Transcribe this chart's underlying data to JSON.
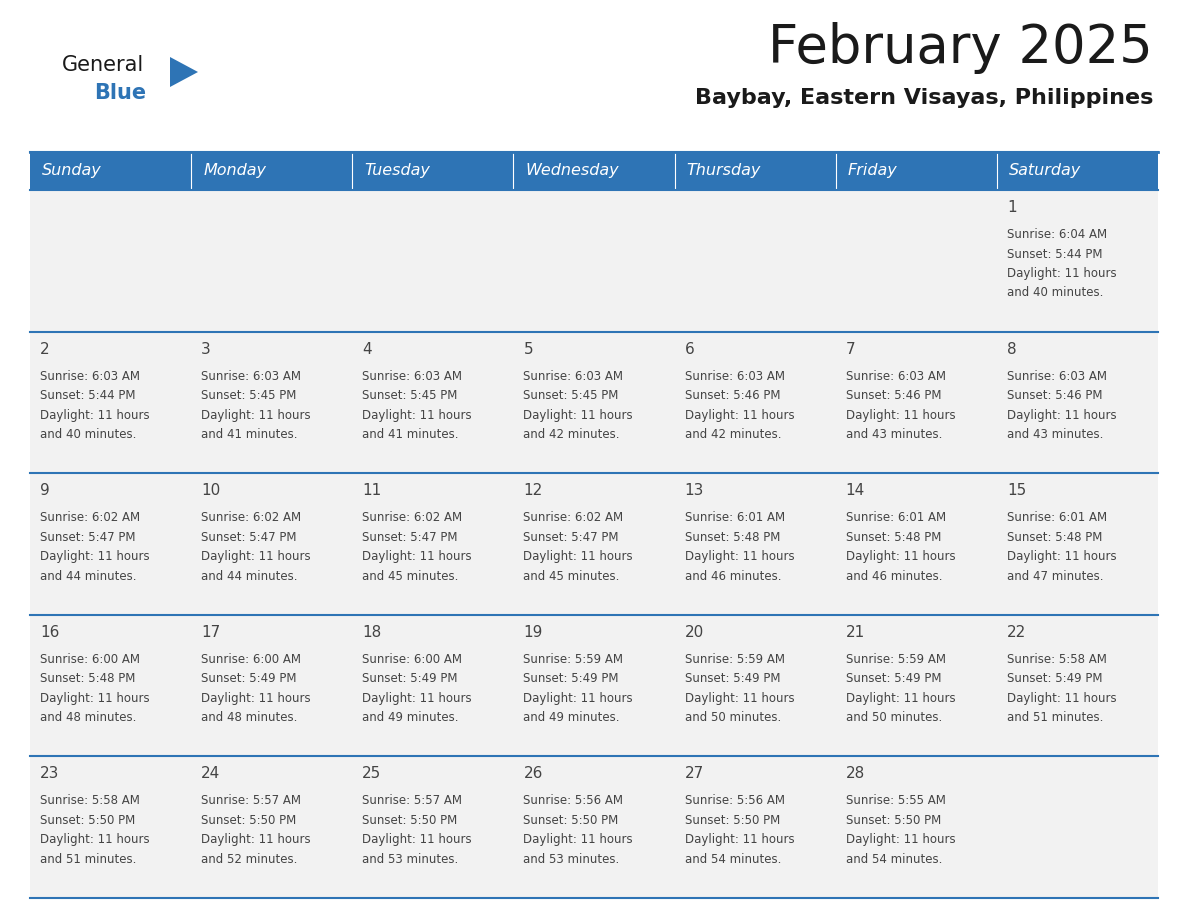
{
  "title": "February 2025",
  "subtitle": "Baybay, Eastern Visayas, Philippines",
  "days_of_week": [
    "Sunday",
    "Monday",
    "Tuesday",
    "Wednesday",
    "Thursday",
    "Friday",
    "Saturday"
  ],
  "header_bg": "#2E74B5",
  "header_text_color": "#FFFFFF",
  "cell_bg": "#F2F2F2",
  "border_color": "#2E74B5",
  "title_color": "#1A1A1A",
  "subtitle_color": "#1A1A1A",
  "logo_general_color": "#1A1A1A",
  "logo_blue_color": "#2E74B5",
  "cell_text_color": "#444444",
  "day_num_color": "#444444",
  "calendar_data": [
    [
      null,
      null,
      null,
      null,
      null,
      null,
      {
        "day": 1,
        "sunrise": "6:04 AM",
        "sunset": "5:44 PM",
        "daylight": "11 hours and 40 minutes."
      }
    ],
    [
      {
        "day": 2,
        "sunrise": "6:03 AM",
        "sunset": "5:44 PM",
        "daylight": "11 hours and 40 minutes."
      },
      {
        "day": 3,
        "sunrise": "6:03 AM",
        "sunset": "5:45 PM",
        "daylight": "11 hours and 41 minutes."
      },
      {
        "day": 4,
        "sunrise": "6:03 AM",
        "sunset": "5:45 PM",
        "daylight": "11 hours and 41 minutes."
      },
      {
        "day": 5,
        "sunrise": "6:03 AM",
        "sunset": "5:45 PM",
        "daylight": "11 hours and 42 minutes."
      },
      {
        "day": 6,
        "sunrise": "6:03 AM",
        "sunset": "5:46 PM",
        "daylight": "11 hours and 42 minutes."
      },
      {
        "day": 7,
        "sunrise": "6:03 AM",
        "sunset": "5:46 PM",
        "daylight": "11 hours and 43 minutes."
      },
      {
        "day": 8,
        "sunrise": "6:03 AM",
        "sunset": "5:46 PM",
        "daylight": "11 hours and 43 minutes."
      }
    ],
    [
      {
        "day": 9,
        "sunrise": "6:02 AM",
        "sunset": "5:47 PM",
        "daylight": "11 hours and 44 minutes."
      },
      {
        "day": 10,
        "sunrise": "6:02 AM",
        "sunset": "5:47 PM",
        "daylight": "11 hours and 44 minutes."
      },
      {
        "day": 11,
        "sunrise": "6:02 AM",
        "sunset": "5:47 PM",
        "daylight": "11 hours and 45 minutes."
      },
      {
        "day": 12,
        "sunrise": "6:02 AM",
        "sunset": "5:47 PM",
        "daylight": "11 hours and 45 minutes."
      },
      {
        "day": 13,
        "sunrise": "6:01 AM",
        "sunset": "5:48 PM",
        "daylight": "11 hours and 46 minutes."
      },
      {
        "day": 14,
        "sunrise": "6:01 AM",
        "sunset": "5:48 PM",
        "daylight": "11 hours and 46 minutes."
      },
      {
        "day": 15,
        "sunrise": "6:01 AM",
        "sunset": "5:48 PM",
        "daylight": "11 hours and 47 minutes."
      }
    ],
    [
      {
        "day": 16,
        "sunrise": "6:00 AM",
        "sunset": "5:48 PM",
        "daylight": "11 hours and 48 minutes."
      },
      {
        "day": 17,
        "sunrise": "6:00 AM",
        "sunset": "5:49 PM",
        "daylight": "11 hours and 48 minutes."
      },
      {
        "day": 18,
        "sunrise": "6:00 AM",
        "sunset": "5:49 PM",
        "daylight": "11 hours and 49 minutes."
      },
      {
        "day": 19,
        "sunrise": "5:59 AM",
        "sunset": "5:49 PM",
        "daylight": "11 hours and 49 minutes."
      },
      {
        "day": 20,
        "sunrise": "5:59 AM",
        "sunset": "5:49 PM",
        "daylight": "11 hours and 50 minutes."
      },
      {
        "day": 21,
        "sunrise": "5:59 AM",
        "sunset": "5:49 PM",
        "daylight": "11 hours and 50 minutes."
      },
      {
        "day": 22,
        "sunrise": "5:58 AM",
        "sunset": "5:49 PM",
        "daylight": "11 hours and 51 minutes."
      }
    ],
    [
      {
        "day": 23,
        "sunrise": "5:58 AM",
        "sunset": "5:50 PM",
        "daylight": "11 hours and 51 minutes."
      },
      {
        "day": 24,
        "sunrise": "5:57 AM",
        "sunset": "5:50 PM",
        "daylight": "11 hours and 52 minutes."
      },
      {
        "day": 25,
        "sunrise": "5:57 AM",
        "sunset": "5:50 PM",
        "daylight": "11 hours and 53 minutes."
      },
      {
        "day": 26,
        "sunrise": "5:56 AM",
        "sunset": "5:50 PM",
        "daylight": "11 hours and 53 minutes."
      },
      {
        "day": 27,
        "sunrise": "5:56 AM",
        "sunset": "5:50 PM",
        "daylight": "11 hours and 54 minutes."
      },
      {
        "day": 28,
        "sunrise": "5:55 AM",
        "sunset": "5:50 PM",
        "daylight": "11 hours and 54 minutes."
      },
      null
    ]
  ],
  "fig_width": 11.88,
  "fig_height": 9.18,
  "dpi": 100
}
